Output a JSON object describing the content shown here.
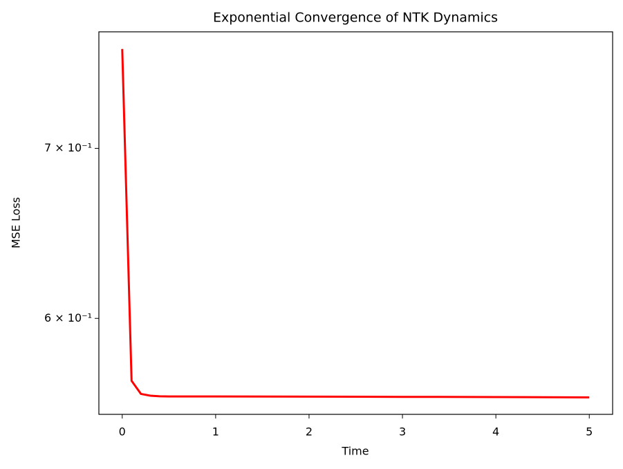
{
  "chart_data": {
    "type": "line",
    "title": "Exponential Convergence of NTK Dynamics",
    "x_label": "Time",
    "y_label": "MSE Loss",
    "x": [
      0,
      0.1,
      0.2,
      0.3,
      0.4,
      0.5,
      1,
      2,
      3,
      4,
      5
    ],
    "series": [
      {
        "name": "MSE Loss",
        "color": "#ff0000",
        "values": [
          0.766,
          0.567,
          0.5603,
          0.5594,
          0.5591,
          0.559,
          0.559,
          0.5589,
          0.5588,
          0.5587,
          0.5585
        ]
      }
    ],
    "xlim": [
      -0.25,
      5.25
    ],
    "xticks": [
      0,
      1,
      2,
      3,
      4,
      5
    ],
    "ylim": [
      0.55,
      0.778
    ],
    "y_log": true,
    "yticks": [
      {
        "value": 0.6,
        "label": "6 × 10⁻¹"
      },
      {
        "value": 0.7,
        "label": "7 × 10⁻¹"
      }
    ],
    "grid": false
  }
}
